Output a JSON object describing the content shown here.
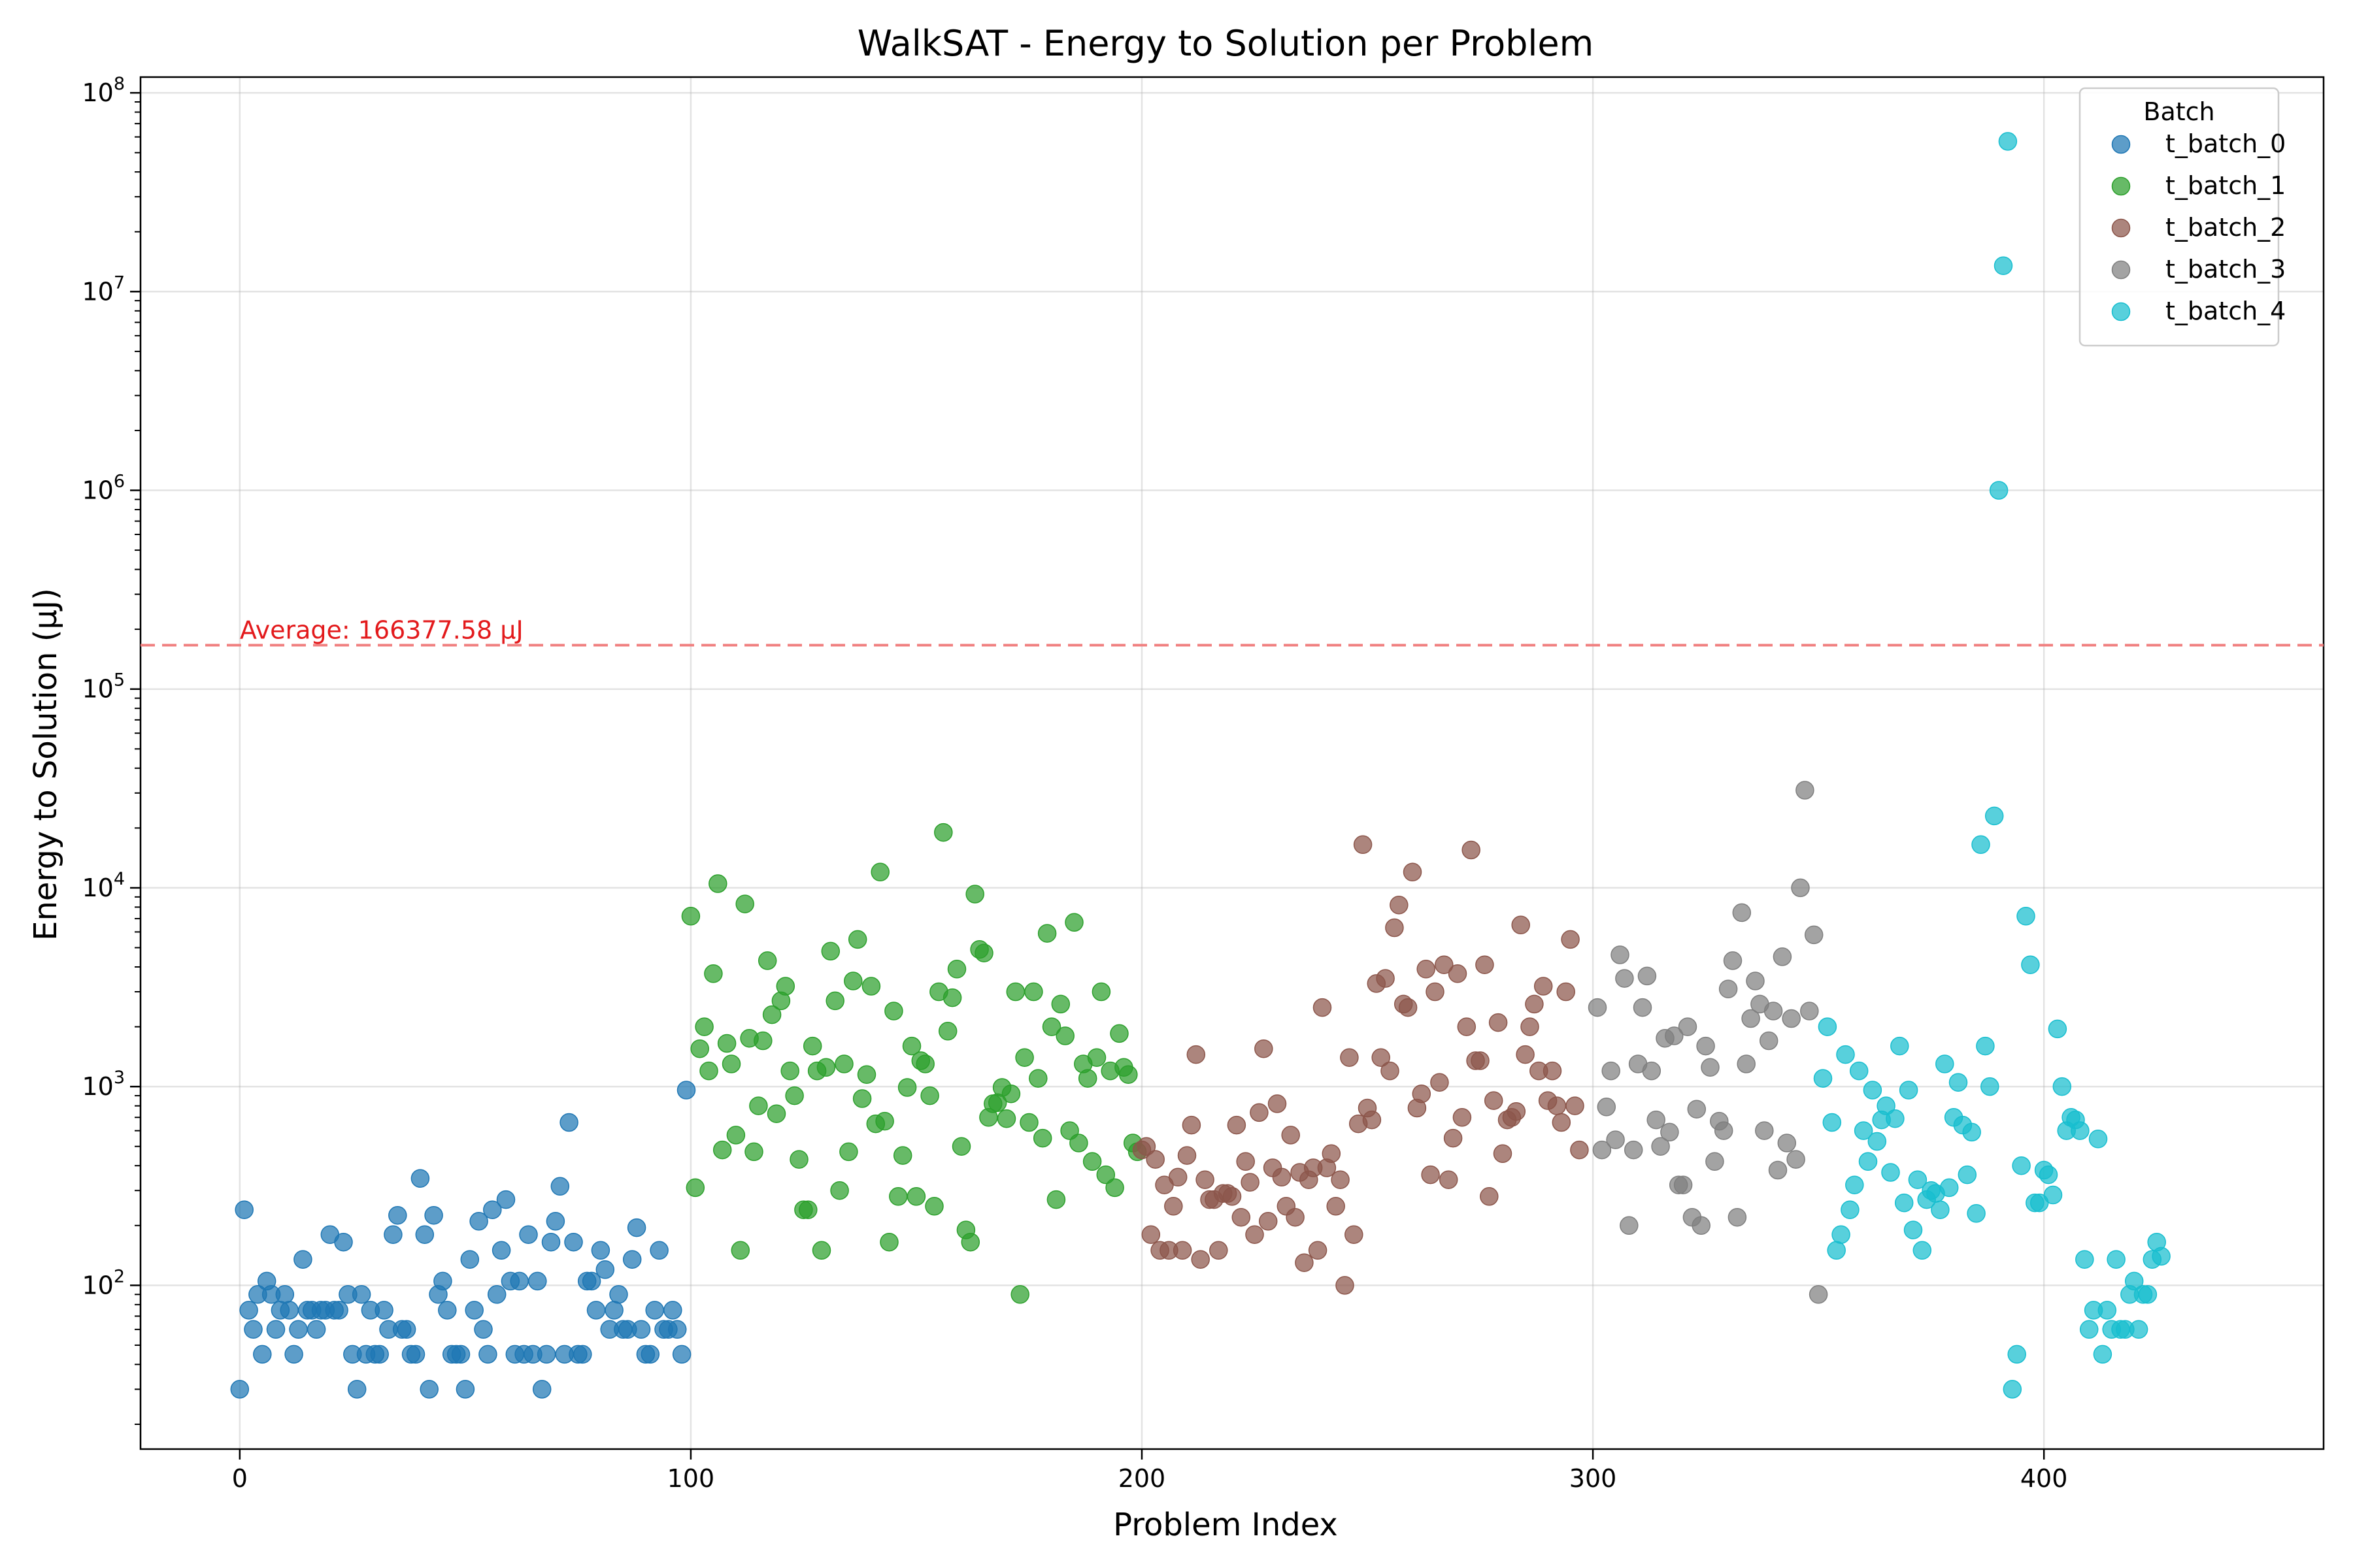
{
  "chart_data": {
    "type": "scatter",
    "title": "WalkSAT - Energy to Solution per Problem",
    "xlabel": "Problem Index",
    "ylabel": "Energy to Solution (μJ)",
    "xlim": [
      -22,
      462
    ],
    "ylim": [
      15,
      120000000
    ],
    "y_scale": "log",
    "grid": true,
    "x_ticks": [
      0,
      100,
      200,
      300,
      400
    ],
    "y_ticks": [
      {
        "value": 100,
        "exp": "2"
      },
      {
        "value": 1000,
        "exp": "3"
      },
      {
        "value": 10000,
        "exp": "4"
      },
      {
        "value": 100000,
        "exp": "5"
      },
      {
        "value": 1000000,
        "exp": "6"
      },
      {
        "value": 10000000,
        "exp": "7"
      },
      {
        "value": 100000000,
        "exp": "8"
      }
    ],
    "y_tick_base": "10",
    "average": {
      "value": 166377.58,
      "label": "Average: 166377.58 μJ",
      "color": "#f08080"
    },
    "legend": {
      "title": "Batch",
      "placement": "top-right"
    },
    "series": [
      {
        "name": "t_batch_0",
        "color": "#1f77b4",
        "x_start": 0,
        "values": [
          30,
          240,
          75,
          60,
          90,
          45,
          105,
          90,
          60,
          75,
          90,
          75,
          45,
          60,
          135,
          75,
          75,
          60,
          75,
          75,
          180,
          75,
          75,
          165,
          90,
          45,
          30,
          90,
          45,
          75,
          45,
          45,
          75,
          60,
          180,
          225,
          60,
          60,
          45,
          45,
          345,
          180,
          30,
          225,
          90,
          105,
          75,
          45,
          45,
          45,
          30,
          135,
          75,
          210,
          60,
          45,
          240,
          90,
          150,
          270,
          105,
          45,
          105,
          45,
          180,
          45,
          105,
          30,
          45,
          165,
          210,
          315,
          45,
          660,
          165,
          45,
          45,
          105,
          105,
          75,
          150,
          120,
          60,
          75,
          90,
          60,
          60,
          135,
          195,
          60,
          45,
          45,
          75,
          150,
          60,
          60,
          75,
          60,
          45,
          960
        ]
      },
      {
        "name": "t_batch_1",
        "color": "#2ca02c",
        "x_start": 100,
        "values": [
          7200,
          310,
          1550,
          2000,
          1200,
          3700,
          10500,
          480,
          1650,
          1300,
          570,
          150,
          8300,
          1750,
          470,
          800,
          1700,
          4300,
          2300,
          730,
          2700,
          3200,
          1200,
          900,
          430,
          240,
          240,
          1600,
          1200,
          150,
          1250,
          4800,
          2700,
          300,
          1300,
          470,
          3400,
          5500,
          870,
          1150,
          3200,
          650,
          12000,
          670,
          165,
          2400,
          280,
          450,
          990,
          1600,
          280,
          1350,
          1300,
          900,
          250,
          3000,
          19000,
          1900,
          2800,
          3900,
          500,
          190,
          165,
          9300,
          4900,
          4700,
          700,
          820,
          830,
          990,
          690,
          920,
          3000,
          90,
          1400,
          660,
          3000,
          1100,
          550,
          5900,
          2000,
          270,
          2600,
          1800,
          600,
          6700,
          520,
          1300,
          1100,
          420,
          1400,
          3000,
          360,
          1200,
          310,
          1850,
          1250,
          1150,
          520,
          470
        ]
      },
      {
        "name": "t_batch_2",
        "color": "#8c564b",
        "x_start": 200,
        "values": [
          480,
          500,
          180,
          430,
          150,
          320,
          150,
          250,
          350,
          150,
          450,
          640,
          1450,
          135,
          340,
          270,
          270,
          150,
          290,
          290,
          280,
          640,
          220,
          420,
          330,
          180,
          740,
          1550,
          210,
          390,
          820,
          350,
          250,
          570,
          220,
          370,
          130,
          340,
          390,
          150,
          2500,
          390,
          460,
          250,
          340,
          100,
          1400,
          180,
          650,
          16500,
          780,
          680,
          3300,
          1400,
          3500,
          1200,
          6300,
          8200,
          2600,
          2500,
          12000,
          780,
          920,
          3900,
          360,
          3000,
          1050,
          4100,
          340,
          550,
          3700,
          700,
          2000,
          15500,
          1350,
          1350,
          4100,
          280,
          850,
          2100,
          460,
          680,
          700,
          750,
          6500,
          1450,
          2000,
          2600,
          1200,
          3200,
          850,
          1200,
          800,
          660,
          3000,
          5500,
          800,
          480
        ]
      },
      {
        "name": "t_batch_3",
        "color": "#7f7f7f",
        "x_start": 301,
        "values": [
          2500,
          480,
          790,
          1200,
          540,
          4600,
          3500,
          200,
          480,
          1300,
          2500,
          3600,
          1200,
          680,
          500,
          1750,
          590,
          1800,
          320,
          320,
          2000,
          220,
          770,
          200,
          1600,
          1250,
          420,
          670,
          600,
          3100,
          4300,
          220,
          7500,
          1300,
          2200,
          3400,
          2600,
          600,
          1700,
          2400,
          380,
          4500,
          520,
          2200,
          430,
          10000,
          31000,
          2400,
          5800,
          90
        ]
      },
      {
        "name": "t_batch_4",
        "color": "#17becf",
        "x_start": 351,
        "values": [
          1100,
          2000,
          660,
          150,
          180,
          1450,
          240,
          320,
          1200,
          600,
          420,
          960,
          530,
          680,
          800,
          370,
          690,
          1600,
          260,
          960,
          190,
          340,
          150,
          270,
          300,
          290,
          240,
          1300,
          310,
          700,
          1050,
          640,
          360,
          590,
          230,
          16500,
          1600,
          1000,
          23000,
          1000000,
          13500000,
          57000000,
          30,
          45,
          400,
          7200,
          4100,
          260,
          260,
          380,
          360,
          285,
          1950,
          1000,
          600,
          700,
          680,
          600,
          135,
          60,
          75,
          545,
          45,
          75,
          60,
          135,
          60,
          60,
          90,
          105,
          60,
          90,
          90,
          135,
          165,
          140
        ]
      }
    ]
  }
}
